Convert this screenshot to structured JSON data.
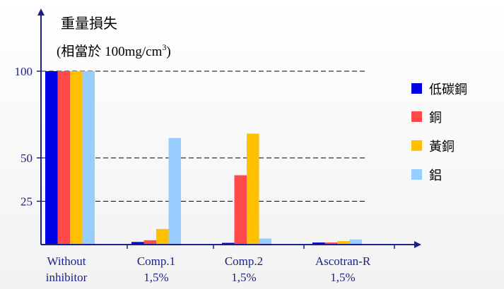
{
  "chart_data": {
    "type": "bar",
    "title": "重量損失",
    "subtitle_prefix": "(相當於 100mg/cm",
    "subtitle_sup": "3",
    "subtitle_suffix": ")",
    "categories": [
      [
        "Without",
        "inhibitor"
      ],
      [
        "Comp.1",
        "1,5%"
      ],
      [
        "Comp.2",
        "1,5%"
      ],
      [
        "Ascotran-R",
        "1,5%"
      ]
    ],
    "series": [
      {
        "name": "低碳鋼",
        "color": "#0000e6",
        "values": [
          100,
          1.5,
          1,
          1.2
        ]
      },
      {
        "name": "銅",
        "color": "#ff4a4a",
        "values": [
          100,
          2.5,
          40,
          1.2
        ]
      },
      {
        "name": "黃銅",
        "color": "#ffc000",
        "values": [
          100,
          9,
          64,
          2
        ]
      },
      {
        "name": "鋁",
        "color": "#99ccff",
        "values": [
          100,
          61.5,
          3.5,
          3
        ]
      }
    ],
    "yticks": [
      25,
      50,
      100
    ],
    "ylim": [
      0,
      100
    ],
    "gridlines": [
      25,
      50,
      100
    ],
    "grid_style": "dashed",
    "legend_position": "right",
    "axis_color": "#1b1f8a"
  }
}
